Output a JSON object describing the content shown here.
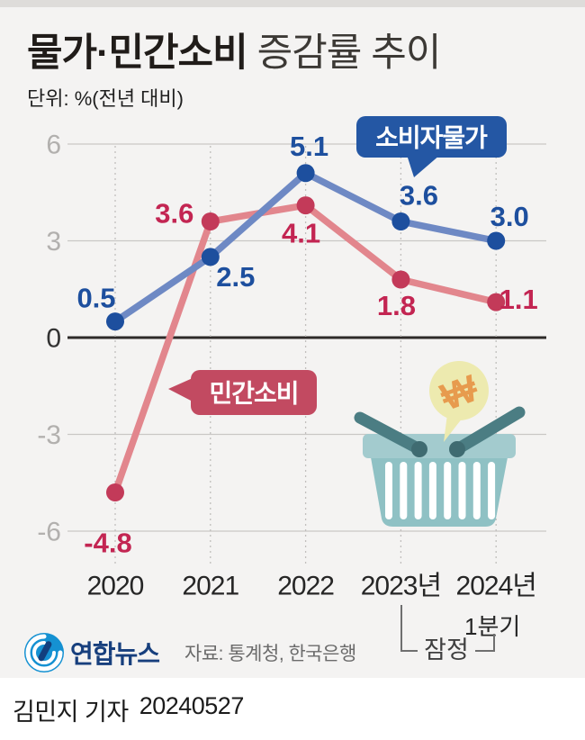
{
  "header": {
    "title_bold": "물가·민간소비",
    "title_rest": " 증감률 추이",
    "unit": "단위: %(전년 대비)"
  },
  "chart_data": {
    "type": "line",
    "categories": [
      "2020",
      "2021",
      "2022",
      "2023년",
      "2024년"
    ],
    "category_subnote": {
      "index": 4,
      "text": "1분기"
    },
    "yticks": [
      6,
      3,
      0,
      -3,
      -6
    ],
    "ylim": [
      -6,
      6
    ],
    "grid": true,
    "series": [
      {
        "name": "소비자물가",
        "values": [
          0.5,
          2.5,
          5.1,
          3.6,
          3.0
        ],
        "color_line": "#6e89c4",
        "color_dot": "#1d4f9e",
        "color_text": "#1d4f9e",
        "label_offsets": [
          [
            -21,
            -26
          ],
          [
            28,
            22
          ],
          [
            4,
            -30
          ],
          [
            20,
            -29
          ],
          [
            15,
            -27
          ]
        ]
      },
      {
        "name": "민간소비",
        "values": [
          -4.8,
          3.6,
          4.1,
          1.8,
          1.1
        ],
        "color_line": "#e2868d",
        "color_dot": "#c33a59",
        "color_text": "#c32552",
        "label_offsets": [
          [
            -8,
            56
          ],
          [
            -40,
            -9
          ],
          [
            -5,
            31
          ],
          [
            -5,
            29
          ],
          [
            25,
            -3
          ]
        ]
      }
    ],
    "annotations": {
      "series_badges": [
        {
          "text": "소비자물가",
          "bg": "#2457a4",
          "fg": "#ffffff"
        },
        {
          "text": "민간소비",
          "bg": "#c24a61",
          "fg": "#ffffff"
        }
      ],
      "provisional": {
        "text": "잠정",
        "applies_to": [
          "2023년",
          "2024년 1분기"
        ]
      }
    },
    "axis_colors": {
      "grid": "#c9c7c5",
      "zero_line": "#2d2a28",
      "tick": "#b2b0ae",
      "tick_zero": "#333333",
      "x_label": "#262626"
    }
  },
  "illustration": {
    "name": "shopping-basket-with-won-bubble",
    "currency_symbol": "₩",
    "colors": {
      "body": "#8fc1c4",
      "rim": "#a3cbce",
      "handle": "#4b7d83",
      "knob": "#3f6b71",
      "bubble": "#edeaaf",
      "won": "#e79b4e"
    }
  },
  "footer": {
    "logo_text": "연합뉴스",
    "source": "자료: 통계청, 한국은행",
    "byline": "김민지 기자",
    "date": "20240527"
  }
}
